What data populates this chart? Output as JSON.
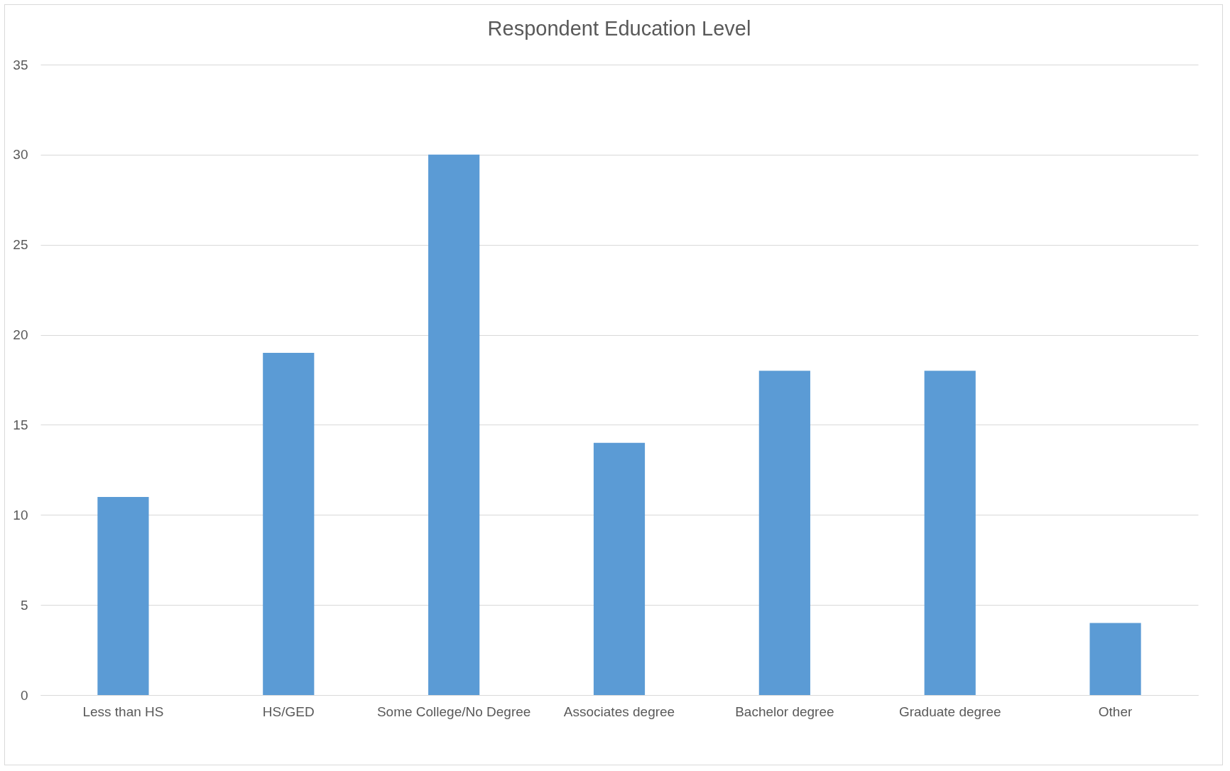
{
  "chart_data": {
    "type": "bar",
    "title": "Respondent Education Level",
    "categories": [
      "Less than HS",
      "HS/GED",
      "Some College/No Degree",
      "Associates degree",
      "Bachelor degree",
      "Graduate degree",
      "Other"
    ],
    "values": [
      11,
      19,
      30,
      14,
      18,
      18,
      4
    ],
    "color": "#5b9bd5",
    "ylim": [
      0,
      35
    ],
    "yticks": [
      0,
      5,
      10,
      15,
      20,
      25,
      30,
      35
    ],
    "grid": "y"
  }
}
